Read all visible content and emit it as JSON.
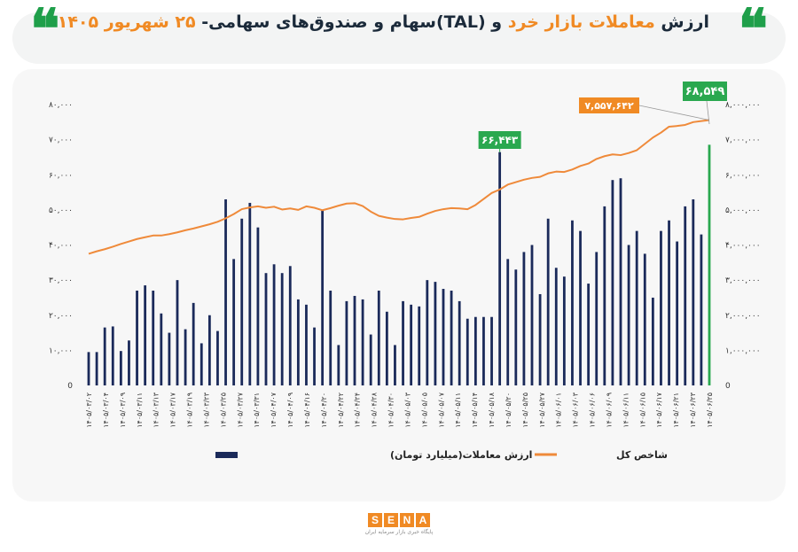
{
  "header": {
    "title_parts": [
      {
        "text": "ارزش ",
        "hl": false
      },
      {
        "text": "معاملات بازار خرد",
        "hl": true
      },
      {
        "text": " و (TAL)سهام و صندوق‌های سهامی- ",
        "hl": false
      },
      {
        "text": "۲۵ شهریور ۱۴۰۵",
        "hl": true
      }
    ],
    "quote_glyph": "❝"
  },
  "legend": {
    "bar_label": "ارزش معاملات(میلیارد تومان)",
    "line_label": "شاخص کل"
  },
  "colors": {
    "bar": "#1b2a5a",
    "bar_highlight": "#2aa84f",
    "line": "#ef8a3a",
    "callout_green": "#2aa84f",
    "callout_orange": "#f08a24",
    "axis_text": "#333333"
  },
  "chart_data": {
    "type": "bar+line",
    "grid": false,
    "legend_position": "bottom",
    "left_axis": {
      "ylim": [
        0,
        80000
      ],
      "ticks": [
        0,
        10000,
        20000,
        30000,
        40000,
        50000,
        60000,
        70000,
        80000
      ],
      "tick_labels": [
        "0",
        "۱۰,۰۰۰",
        "۲۰,۰۰۰",
        "۳۰,۰۰۰",
        "۴۰,۰۰۰",
        "۵۰,۰۰۰",
        "۶۰,۰۰۰",
        "۷۰,۰۰۰",
        "۸۰,۰۰۰"
      ]
    },
    "right_axis": {
      "ylim": [
        0,
        8000000
      ],
      "ticks": [
        0,
        1000000,
        2000000,
        3000000,
        4000000,
        5000000,
        6000000,
        7000000,
        8000000
      ],
      "tick_labels": [
        "0",
        "۱,۰۰۰,۰۰۰",
        "۲,۰۰۰,۰۰۰",
        "۳,۰۰۰,۰۰۰",
        "۴,۰۰۰,۰۰۰",
        "۵,۰۰۰,۰۰۰",
        "۶,۰۰۰,۰۰۰",
        "۷,۰۰۰,۰۰۰",
        "۸,۰۰۰,۰۰۰"
      ]
    },
    "x_tick_labels": [
      "۱۴۰۵/۰۳/۰۲",
      "۱۴۰۵/۰۳/۰۴",
      "۱۴۰۵/۰۳/۰۹",
      "۱۴۰۵/۰۳/۱۱",
      "۱۴۰۵/۰۳/۱۳",
      "۱۴۰۵/۰۳/۱۷",
      "۱۴۰۵/۰۳/۱۹",
      "۱۴۰۵/۰۳/۲۳",
      "۱۴۰۵/۰۳/۲۵",
      "۱۴۰۵/۰۳/۲۷",
      "۱۴۰۵/۰۳/۳۱",
      "۱۴۰۵/۰۴/۰۷",
      "۱۴۰۵/۰۴/۰۹",
      "۱۴۰۵/۰۴/۱۶",
      "۱۴۰۵/۰۴/۲۰",
      "۱۴۰۵/۰۴/۲۲",
      "۱۴۰۵/۰۴/۲۴",
      "۱۴۰۵/۰۴/۲۸",
      "۱۴۰۵/۰۴/۳۰",
      "۱۴۰۵/۰۵/۰۳",
      "۱۴۰۵/۰۵/۰۵",
      "۱۴۰۵/۰۵/۰۷",
      "۱۴۰۵/۰۵/۱۱",
      "۱۴۰۵/۰۵/۱۴",
      "۱۴۰۵/۰۵/۱۸",
      "۱۴۰۵/۰۵/۲۰",
      "۱۴۰۵/۰۵/۲۵",
      "۱۴۰۵/۰۵/۲۷",
      "۱۴۰۵/۰۶/۰۱",
      "۱۴۰۵/۰۶/۰۳",
      "۱۴۰۵/۰۶/۰۶",
      "۱۴۰۵/۰۶/۰۹",
      "۱۴۰۵/۰۶/۱۱",
      "۱۴۰۵/۰۶/۱۵",
      "۱۴۰۵/۰۶/۱۷",
      "۱۴۰۵/۰۶/۲۱",
      "۱۴۰۵/۰۶/۲۳",
      "۱۴۰۵/۰۶/۲۵"
    ],
    "series": [
      {
        "name": "ارزش معاملات(میلیارد تومان)",
        "type": "bar",
        "axis": "left",
        "values": [
          9500,
          9500,
          16500,
          16800,
          9800,
          12800,
          27000,
          28500,
          27000,
          20500,
          15000,
          30000,
          16000,
          23500,
          12000,
          20000,
          15500,
          53000,
          36000,
          47500,
          52000,
          45000,
          32000,
          34500,
          32000,
          34000,
          24500,
          23000,
          16500,
          50000,
          27000,
          11500,
          24000,
          25500,
          24500,
          14500,
          27000,
          21000,
          11500,
          24000,
          23000,
          22500,
          30000,
          29500,
          27500,
          27000,
          24000,
          19000,
          19500,
          19500,
          19500,
          66443,
          36000,
          33000,
          38000,
          40000,
          26000,
          47500,
          33500,
          31000,
          47000,
          44000,
          29000,
          38000,
          51000,
          58500,
          59000,
          40000,
          44000,
          37500,
          25000,
          44000,
          47000,
          41000,
          51000,
          53000,
          43000,
          68549
        ]
      },
      {
        "name": "شاخص کل",
        "type": "line",
        "axis": "right",
        "values": [
          3750000,
          3820000,
          3880000,
          3950000,
          4030000,
          4100000,
          4170000,
          4220000,
          4270000,
          4270000,
          4310000,
          4360000,
          4420000,
          4470000,
          4530000,
          4590000,
          4660000,
          4760000,
          4880000,
          5020000,
          5070000,
          5100000,
          5060000,
          5090000,
          5010000,
          5040000,
          5000000,
          5100000,
          5060000,
          4990000,
          5050000,
          5120000,
          5180000,
          5190000,
          5110000,
          4950000,
          4830000,
          4780000,
          4740000,
          4730000,
          4770000,
          4800000,
          4890000,
          4970000,
          5020000,
          5050000,
          5040000,
          5020000,
          5140000,
          5310000,
          5480000,
          5580000,
          5720000,
          5790000,
          5860000,
          5910000,
          5940000,
          6040000,
          6090000,
          6080000,
          6150000,
          6250000,
          6320000,
          6450000,
          6530000,
          6580000,
          6560000,
          6620000,
          6700000,
          6880000,
          7060000,
          7200000,
          7370000,
          7390000,
          7420000,
          7500000,
          7530000,
          7557642
        ]
      }
    ],
    "callouts": [
      {
        "text": "۶۶,۴۴۳",
        "series": 0,
        "index": 51,
        "style": "green"
      },
      {
        "text": "۶۸,۵۴۹",
        "series": 0,
        "index": 77,
        "style": "green"
      },
      {
        "text": "۷,۵۵۷,۶۴۲",
        "series": 1,
        "index": 77,
        "style": "orange"
      }
    ]
  },
  "footer": {
    "logo_letters": [
      "S",
      "E",
      "N",
      "A"
    ],
    "logo_sub": "پایگاه خبری بازار سرمایه ایران"
  }
}
